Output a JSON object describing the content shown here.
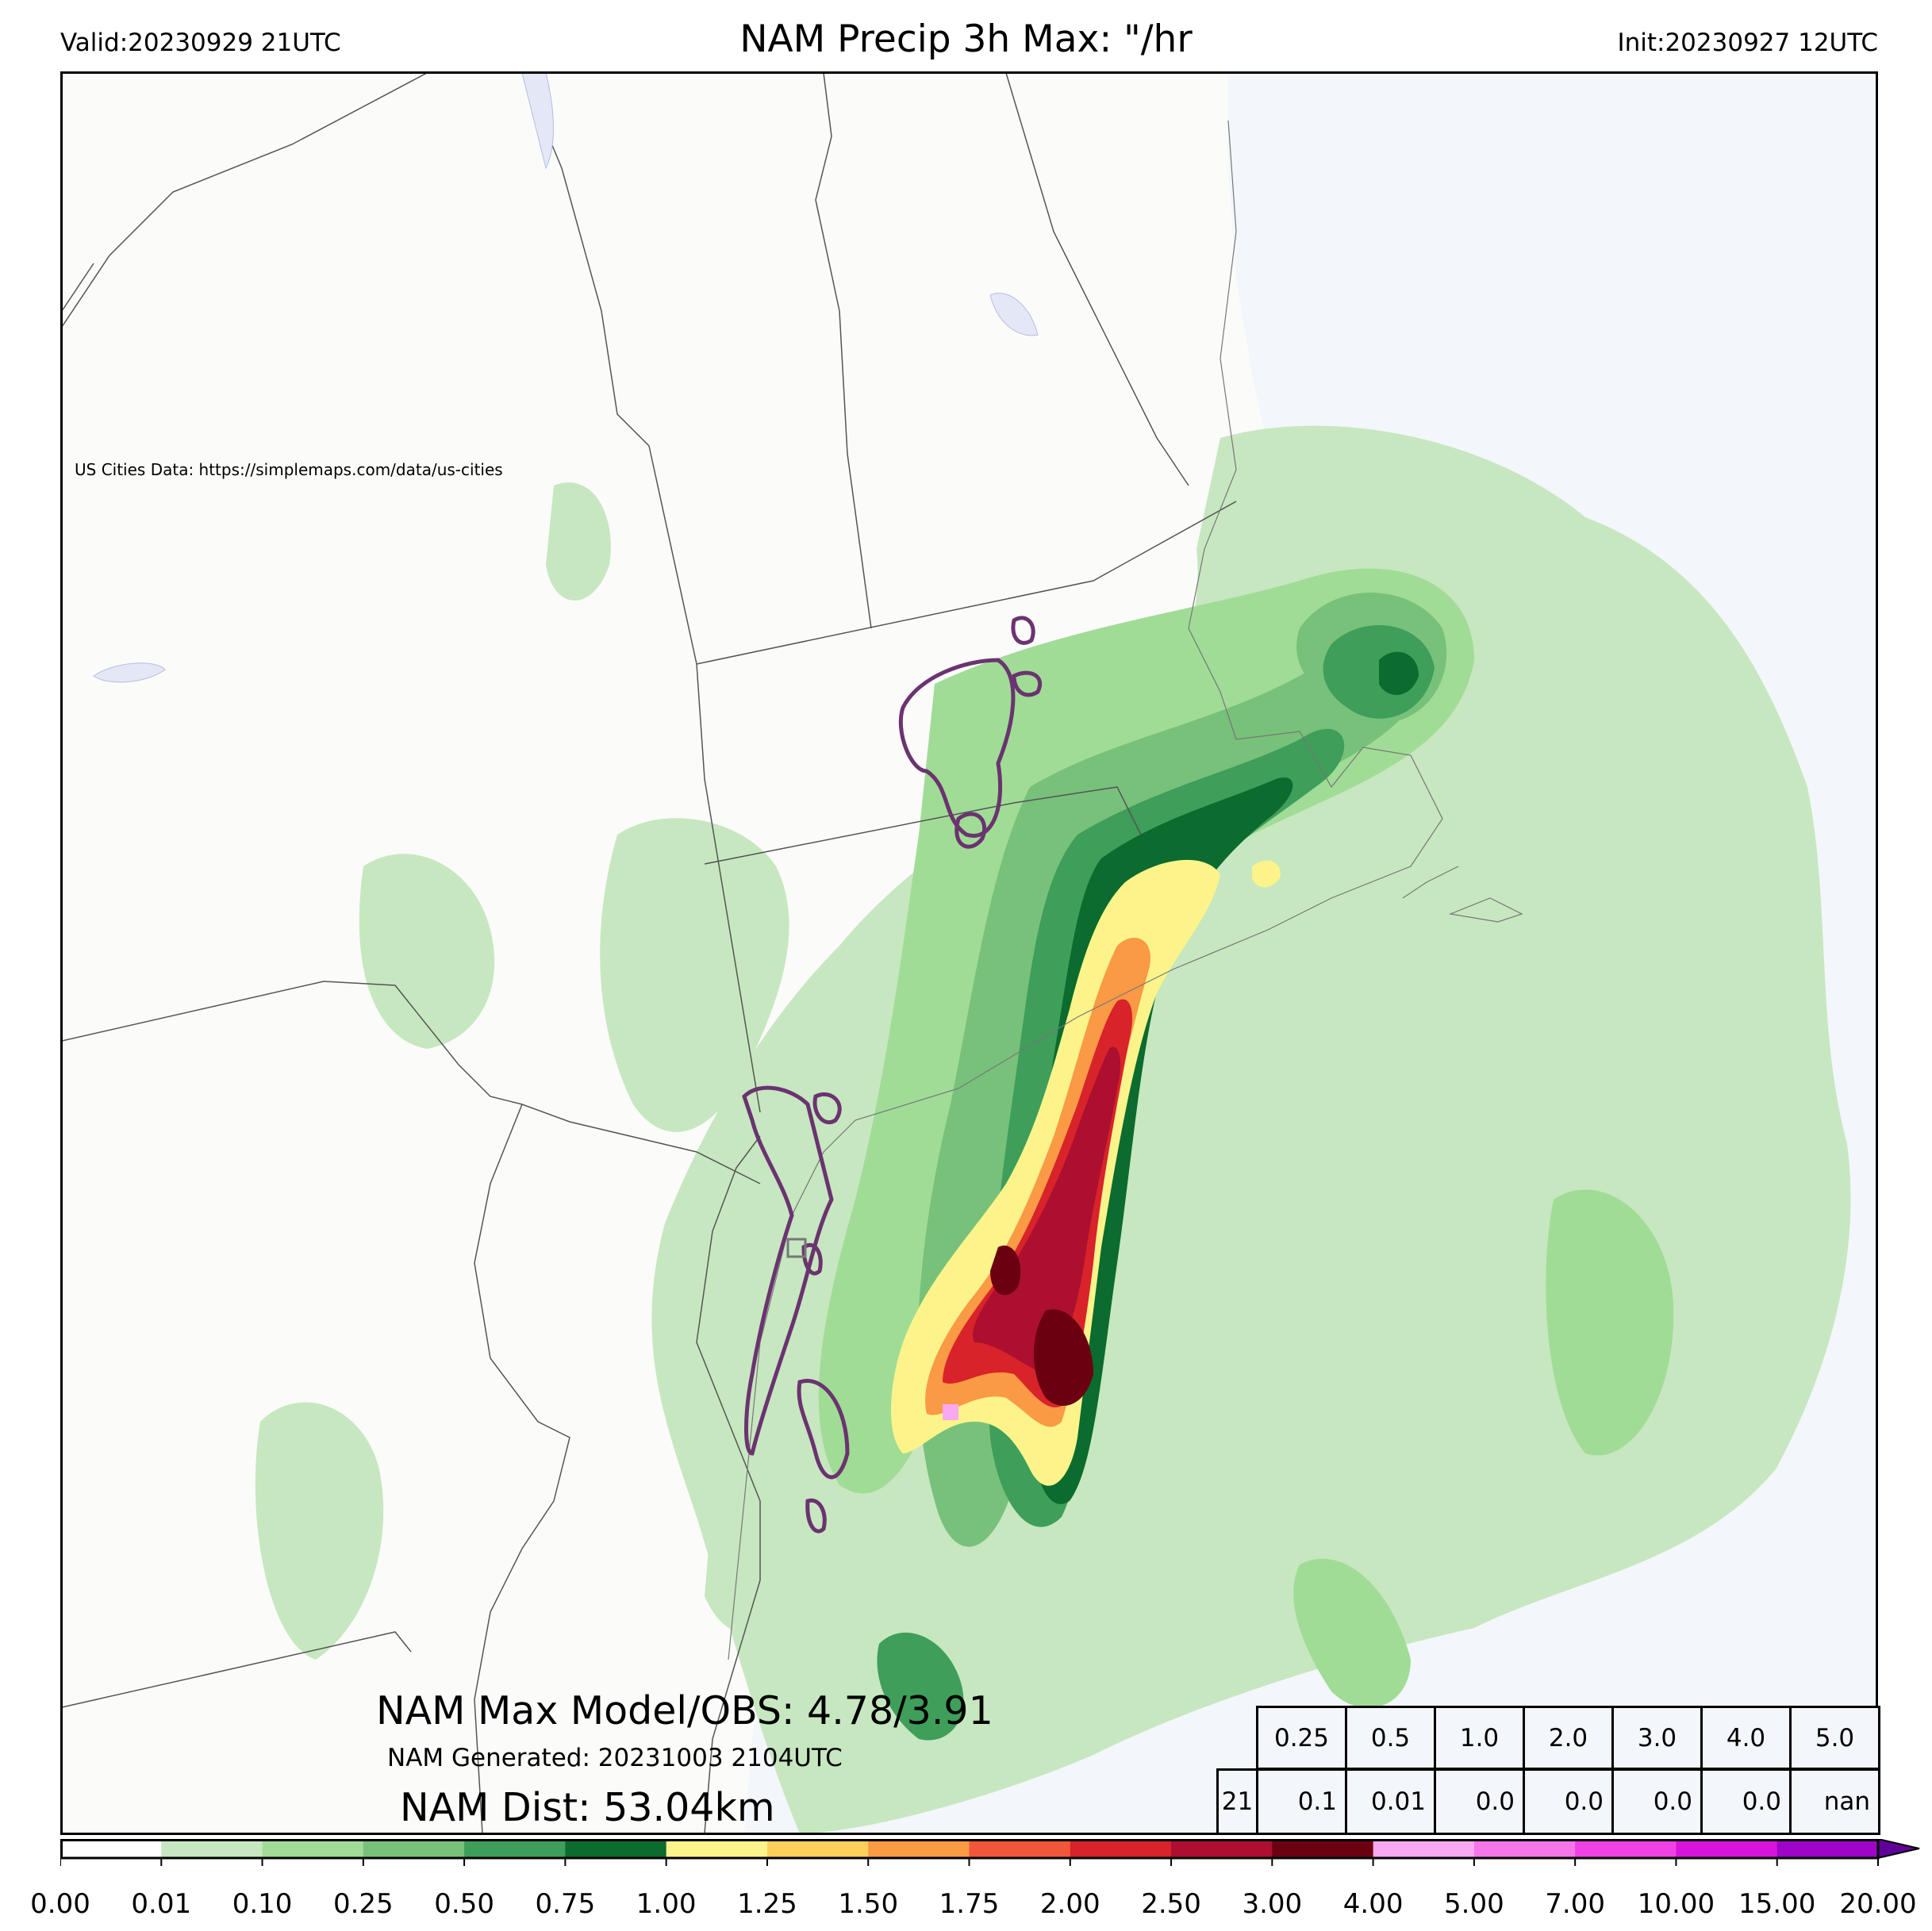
{
  "header": {
    "valid": "Valid:20230929 21UTC",
    "title": "NAM Precip 3h Max: \"/hr",
    "init": "Init:20230927 12UTC"
  },
  "map": {
    "credit": "US Cities Data: https://simplemaps.com/data/us-cities",
    "colors": {
      "land": "#fbfbfa",
      "ocean": "#f3f6fb",
      "border": "#555555",
      "obs_contour": "#6b3370"
    }
  },
  "annotations": {
    "max_line": "NAM Max Model/OBS: 4.78/3.91",
    "generated_line": "NAM Generated: 20231003 2104UTC",
    "dist_line": "NAM Dist: 53.04km"
  },
  "stats_table": {
    "thresholds": [
      "0.25",
      "0.5",
      "1.0",
      "2.0",
      "3.0",
      "4.0",
      "5.0"
    ],
    "row_label": "21",
    "values": [
      "0.1",
      "0.01",
      "0.0",
      "0.0",
      "0.0",
      "0.0",
      "nan"
    ]
  },
  "colorbar": {
    "ticks": [
      "0.00",
      "0.01",
      "0.10",
      "0.25",
      "0.50",
      "0.75",
      "1.00",
      "1.25",
      "1.50",
      "1.75",
      "2.00",
      "2.50",
      "3.00",
      "4.00",
      "5.00",
      "7.00",
      "10.00",
      "15.00",
      "20.00"
    ],
    "colors": [
      "#ffffff",
      "#c7e7c0",
      "#a0dc96",
      "#78c17a",
      "#3e9e5a",
      "#0c6b2e",
      "#fcf48a",
      "#fdd05a",
      "#fb9a45",
      "#f0563a",
      "#d8232a",
      "#ac0f30",
      "#6b0011",
      "#f8a9f0",
      "#f576e8",
      "#ef41e4",
      "#d814dc",
      "#9d06c8"
    ],
    "extend_color": "#5f0098"
  }
}
